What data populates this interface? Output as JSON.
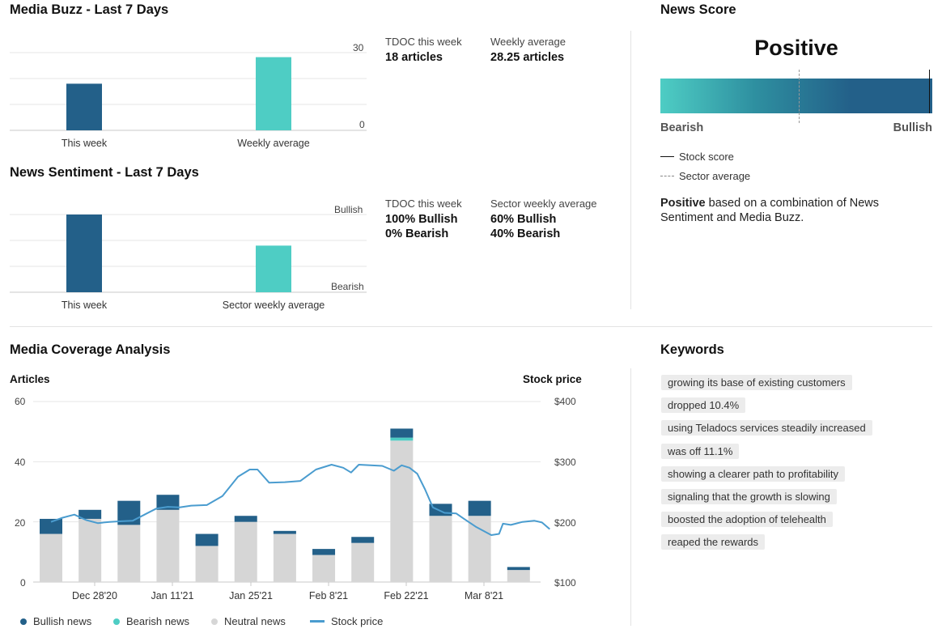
{
  "media_buzz": {
    "title": "Media Buzz - Last 7 Days",
    "axis_top": "30",
    "axis_bottom": "0",
    "stats": [
      {
        "label": "TDOC this week",
        "value": "18 articles"
      },
      {
        "label": "Weekly average",
        "value": "28.25 articles"
      }
    ]
  },
  "news_sentiment": {
    "title": "News Sentiment - Last 7 Days",
    "axis_top": "Bullish",
    "axis_bottom": "Bearish",
    "stats": [
      {
        "label": "TDOC this week",
        "value1": "100% Bullish",
        "value2": "0% Bearish"
      },
      {
        "label": "Sector weekly average",
        "value1": "60% Bullish",
        "value2": "40% Bearish"
      }
    ]
  },
  "news_score": {
    "title": "News Score",
    "verdict": "Positive",
    "left_label": "Bearish",
    "right_label": "Bullish",
    "stock_score_label": "Stock score",
    "sector_average_label": "Sector average",
    "stock_score_fraction": 0.99,
    "sector_average_fraction": 0.5,
    "description_bold": "Positive",
    "description_rest": " based on a combination of News Sentiment and Media Buzz.",
    "gradient_start": "#4ecdc4",
    "gradient_end": "#236089"
  },
  "media_coverage": {
    "title": "Media Coverage Analysis",
    "left_axis_title": "Articles",
    "right_axis_title": "Stock price",
    "legend": [
      "Bullish news",
      "Bearish news",
      "Neutral news",
      "Stock price"
    ]
  },
  "keywords": {
    "title": "Keywords",
    "items": [
      "growing its base of existing customers",
      "dropped 10.4%",
      "using Teladocs services steadily increased",
      "was off 11.1%",
      "showing a clearer path to profitability",
      "signaling that the growth is slowing",
      "boosted the adoption of telehealth",
      "reaped the rewards"
    ]
  },
  "colors": {
    "bullish": "#236089",
    "bearish": "#4ecdc4",
    "neutral": "#d6d6d6",
    "stock": "#4a9ccf"
  },
  "chart_data": [
    {
      "type": "bar",
      "title": "Media Buzz - Last 7 Days",
      "categories": [
        "This week",
        "Weekly average"
      ],
      "values": [
        18,
        28.25
      ],
      "ylim": [
        0,
        30
      ],
      "xlabel": "",
      "ylabel": ""
    },
    {
      "type": "bar",
      "title": "News Sentiment - Last 7 Days",
      "categories": [
        "This week",
        "Sector weekly average"
      ],
      "values": [
        100,
        60
      ],
      "ylim": [
        0,
        100
      ],
      "xlabel": "",
      "ylabel": ""
    },
    {
      "type": "bar",
      "stacked": true,
      "title": "Media Coverage Analysis",
      "xlabel": "",
      "ylabel": "Articles",
      "y2label": "Stock price",
      "ylim": [
        0,
        60
      ],
      "y2lim": [
        100,
        400
      ],
      "yticks": [
        "0",
        "20",
        "40",
        "60"
      ],
      "y2ticks": [
        "$100",
        "$200",
        "$300",
        "$400"
      ],
      "xticks": [
        "Dec 28'20",
        "Jan 11'21",
        "Jan 25'21",
        "Feb 8'21",
        "Feb 22'21",
        "Mar 8'21"
      ],
      "series": [
        {
          "name": "Neutral news",
          "values": [
            16,
            21,
            19,
            24,
            12,
            20,
            16,
            9,
            13,
            47,
            22,
            22,
            4
          ]
        },
        {
          "name": "Bearish news",
          "values": [
            0,
            0,
            0,
            0,
            0,
            0,
            0,
            0,
            0,
            1,
            0,
            0,
            0
          ]
        },
        {
          "name": "Bullish news",
          "values": [
            5,
            3,
            8,
            5,
            4,
            2,
            1,
            2,
            2,
            3,
            4,
            5,
            1
          ]
        }
      ],
      "stock_price": [
        [
          0,
          200
        ],
        [
          0.3,
          207
        ],
        [
          0.6,
          212
        ],
        [
          0.9,
          203
        ],
        [
          1.2,
          198
        ],
        [
          1.5,
          200
        ],
        [
          1.8,
          201
        ],
        [
          2.1,
          202
        ],
        [
          2.4,
          212
        ],
        [
          2.7,
          222
        ],
        [
          3.0,
          225
        ],
        [
          3.3,
          224
        ],
        [
          3.6,
          227
        ],
        [
          4.0,
          228
        ],
        [
          4.4,
          243
        ],
        [
          4.8,
          275
        ],
        [
          5.1,
          287
        ],
        [
          5.3,
          287
        ],
        [
          5.6,
          265
        ],
        [
          6.0,
          266
        ],
        [
          6.4,
          268
        ],
        [
          6.8,
          287
        ],
        [
          7.2,
          295
        ],
        [
          7.5,
          290
        ],
        [
          7.7,
          282
        ],
        [
          7.9,
          295
        ],
        [
          8.2,
          294
        ],
        [
          8.5,
          293
        ],
        [
          8.8,
          285
        ],
        [
          9.0,
          294
        ],
        [
          9.2,
          290
        ],
        [
          9.4,
          280
        ],
        [
          9.6,
          254
        ],
        [
          9.8,
          224
        ],
        [
          10.1,
          215
        ],
        [
          10.4,
          214
        ],
        [
          10.6,
          205
        ],
        [
          10.9,
          192
        ],
        [
          11.3,
          178
        ],
        [
          11.5,
          180
        ],
        [
          11.6,
          197
        ],
        [
          11.8,
          195
        ],
        [
          12.1,
          200
        ],
        [
          12.4,
          202
        ],
        [
          12.6,
          199
        ],
        [
          12.8,
          188
        ]
      ]
    }
  ]
}
